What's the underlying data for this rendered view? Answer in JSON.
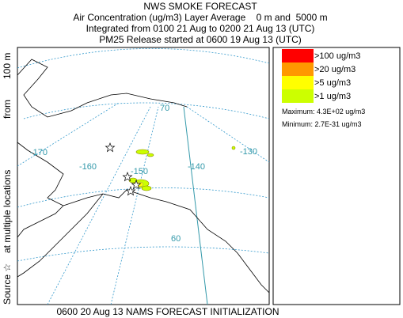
{
  "header": {
    "title": "NWS SMOKE FORECAST",
    "lines": [
      "Air Concentration (ug/m3) Layer Average    0 m and  5000 m",
      "Integrated from 0100 21 Aug to 0200 21 Aug 13 (UTC)",
      "PM25 Release started at 0600 19 Aug 13 (UTC)"
    ]
  },
  "side_label": [
    "Source ☆",
    "at multiple locations",
    "from",
    "100 m"
  ],
  "footer": "0600 20 Aug 13 NAMS FORECAST INITIALIZATION",
  "legend": {
    "items": [
      {
        "label": ">100 ug/m3",
        "color": "#ff0000"
      },
      {
        "label": ">20 ug/m3",
        "color": "#ff9900"
      },
      {
        "label": ">5 ug/m3",
        "color": "#ffff00"
      },
      {
        "label": ">1 ug/m3",
        "color": "#ccff00"
      }
    ],
    "maximum": "Maximum: 4.3E+02 ug/m3",
    "minimum": "Minimum: 2.7E-31 ug/m3"
  },
  "map": {
    "labels": [
      "-170",
      "-160",
      "-150",
      "-140",
      "-130",
      "70",
      "60"
    ]
  }
}
